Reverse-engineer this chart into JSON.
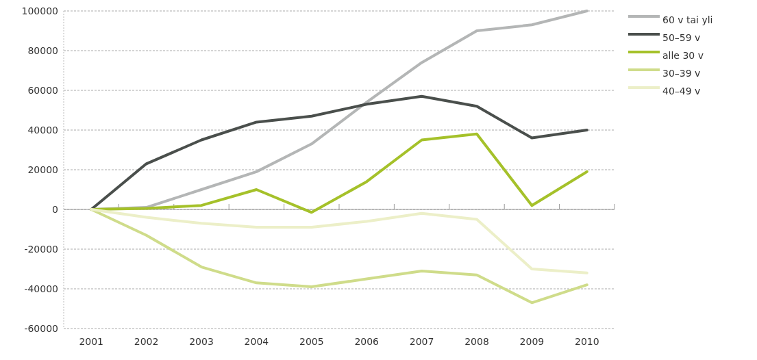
{
  "chart_data": {
    "type": "line",
    "categories": [
      "2001",
      "2002",
      "2003",
      "2004",
      "2005",
      "2006",
      "2007",
      "2008",
      "2009",
      "2010"
    ],
    "series": [
      {
        "name": "60 v tai yli",
        "color": "#b4b6b6",
        "values": [
          0,
          1000,
          10000,
          19000,
          33000,
          54000,
          74000,
          90000,
          93000,
          100000
        ]
      },
      {
        "name": "50–59 v",
        "color": "#4a4f4c",
        "values": [
          0,
          23000,
          35000,
          44000,
          47000,
          53000,
          57000,
          52000,
          36000,
          40000
        ]
      },
      {
        "name": "alle 30 v",
        "color": "#a5c12a",
        "values": [
          0,
          500,
          2000,
          10000,
          -1500,
          14000,
          35000,
          38000,
          2000,
          19000
        ]
      },
      {
        "name": "30–39 v",
        "color": "#cfdc8a",
        "values": [
          0,
          -13000,
          -29000,
          -37000,
          -39000,
          -35000,
          -31000,
          -33000,
          -47000,
          -38000
        ]
      },
      {
        "name": "40–49 v",
        "color": "#ecefc8",
        "values": [
          0,
          -4000,
          -7000,
          -9000,
          -9000,
          -6000,
          -2000,
          -5000,
          -30000,
          -32000
        ]
      }
    ],
    "ylim": [
      -60000,
      100000
    ],
    "yticks": [
      -60000,
      -40000,
      -20000,
      0,
      20000,
      40000,
      60000,
      80000,
      100000
    ],
    "grid": "y",
    "legend": "right",
    "marker": "none",
    "line_style": "solid"
  }
}
